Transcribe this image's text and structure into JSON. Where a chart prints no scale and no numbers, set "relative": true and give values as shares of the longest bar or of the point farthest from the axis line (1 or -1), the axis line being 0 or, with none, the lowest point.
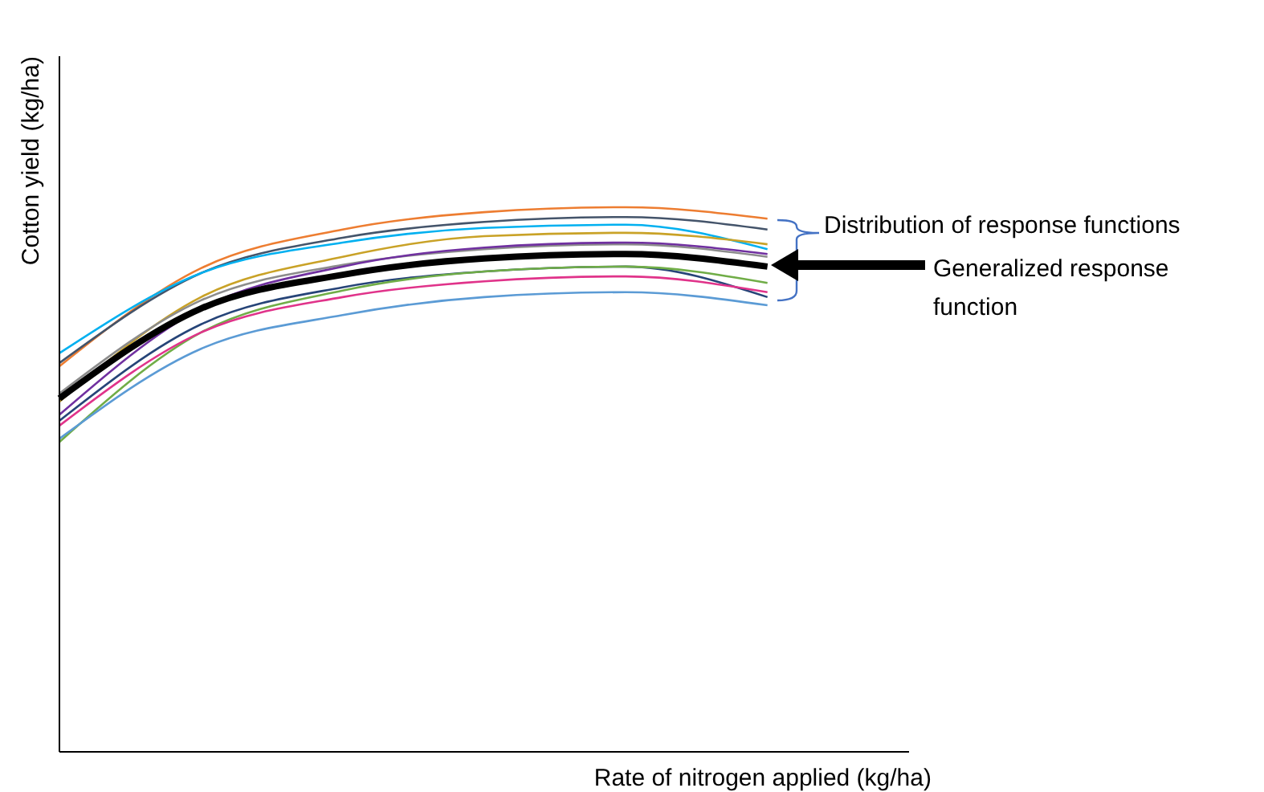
{
  "chart_data": {
    "type": "line",
    "relative": true,
    "xlabel": "Rate of nitrogen applied (kg/ha)",
    "ylabel": "Cotton yield (kg/ha)",
    "categories": [
      null,
      null,
      null,
      null,
      null,
      null,
      null
    ],
    "marker": "none",
    "line_style": "solid",
    "annotations": [
      "Distribution of response functions",
      "Generalized response function"
    ],
    "series": [
      {
        "color": "#ed7d31",
        "values": [
          0.708,
          0.888,
          0.959,
          0.991,
          1.0,
          0.979,
          null
        ]
      },
      {
        "color": "#44546a",
        "values": [
          0.714,
          0.879,
          0.944,
          0.973,
          0.982,
          0.959,
          null
        ]
      },
      {
        "color": "#00b0f0",
        "values": [
          0.732,
          0.879,
          0.935,
          0.962,
          0.968,
          0.923,
          null
        ]
      },
      {
        "color": "#c9a227",
        "values": [
          0.643,
          0.835,
          0.909,
          0.947,
          0.953,
          0.932,
          null
        ]
      },
      {
        "color": "#8c8c8c",
        "values": [
          0.658,
          0.829,
          0.894,
          0.923,
          0.932,
          0.909,
          null
        ]
      },
      {
        "color": "#7030a0",
        "values": [
          0.619,
          0.814,
          0.891,
          0.926,
          0.935,
          0.914,
          null
        ]
      },
      {
        "color": "#264478",
        "values": [
          0.608,
          0.785,
          0.853,
          0.882,
          0.891,
          0.835,
          null
        ]
      },
      {
        "color": "#70ad47",
        "values": [
          0.569,
          0.77,
          0.847,
          0.882,
          0.891,
          0.861,
          null
        ]
      },
      {
        "color": "#e0338a",
        "values": [
          0.599,
          0.77,
          0.835,
          0.864,
          0.873,
          0.844,
          null
        ]
      },
      {
        "color": "#5b9bd5",
        "values": [
          0.575,
          0.74,
          0.802,
          0.835,
          0.844,
          0.82,
          null
        ]
      },
      {
        "color": "#000000",
        "values": [
          0.649,
          0.814,
          0.876,
          0.906,
          0.914,
          0.891,
          null
        ]
      }
    ]
  }
}
